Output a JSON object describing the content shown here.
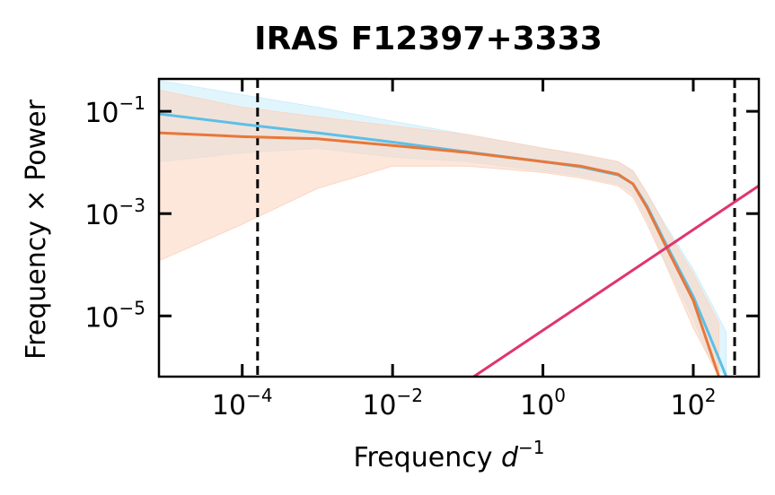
{
  "chart_data": {
    "type": "line",
    "title": "IRAS F12397+3333",
    "x_label": "Frequency d−1",
    "y_label": "Frequency × Power",
    "log_x": true,
    "log_y": true,
    "xlim": [
      7.8e-06,
      745
    ],
    "ylim": [
      6.5e-07,
      0.43
    ],
    "xticks": [
      {
        "value": 0.0001,
        "label": "10−4"
      },
      {
        "value": 0.01,
        "label": "10−2"
      },
      {
        "value": 1,
        "label": "100"
      },
      {
        "value": 100,
        "label": "102"
      }
    ],
    "yticks": [
      {
        "value": 0.1,
        "label": "10−1"
      },
      {
        "value": 0.001,
        "label": "10−3"
      },
      {
        "value": 1e-05,
        "label": "10−5"
      }
    ],
    "vlines": [
      0.00016,
      355
    ],
    "vline_color": "#000000",
    "series": [
      {
        "color": "#5bc0e8",
        "band_color": "#cdeefb",
        "x": [
          7.8e-06,
          0.0001,
          0.001,
          0.01,
          0.1,
          1,
          3.16,
          10,
          15.8,
          24.3,
          42,
          100,
          166,
          275
        ],
        "values": [
          0.089,
          0.056,
          0.038,
          0.025,
          0.016,
          0.0104,
          0.0082,
          0.0057,
          0.0038,
          0.0014,
          0.00028,
          2.4e-05,
          4e-06,
          6.5e-07
        ],
        "upper": [
          0.4,
          0.21,
          0.12,
          0.064,
          0.035,
          0.019,
          0.0144,
          0.0104,
          0.0064,
          0.0025,
          0.00062,
          8.1e-05,
          2e-05,
          4.8e-06
        ],
        "lower": [
          0.0104,
          0.0155,
          0.019,
          0.0128,
          0.0104,
          0.0069,
          0.0055,
          0.0038,
          0.0025,
          0.00076,
          0.00012,
          8.9e-06,
          1.4e-06,
          6.5e-07
        ]
      },
      {
        "color": "#e8773a",
        "band_color": "#fbd6c2",
        "x": [
          7.8e-06,
          0.0001,
          0.001,
          0.01,
          0.1,
          1,
          3.16,
          10,
          15.8,
          24.3,
          42,
          100,
          219
        ],
        "values": [
          0.038,
          0.032,
          0.029,
          0.0215,
          0.0156,
          0.0104,
          0.0085,
          0.0059,
          0.0038,
          0.0013,
          0.00025,
          2e-05,
          6.5e-07
        ],
        "upper": [
          0.26,
          0.12,
          0.078,
          0.052,
          0.035,
          0.019,
          0.0144,
          0.0104,
          0.0069,
          0.0025,
          0.00056,
          6.6e-05,
          7.2e-06
        ],
        "lower": [
          0.00012,
          0.00062,
          0.0031,
          0.0085,
          0.0085,
          0.0064,
          0.005,
          0.0035,
          0.0021,
          0.00062,
          0.00011,
          5.9e-06,
          6.5e-07
        ]
      },
      {
        "color": "#e0356f",
        "x": [
          0.12,
          745
        ],
        "values": [
          6.5e-07,
          0.0035
        ]
      }
    ]
  }
}
